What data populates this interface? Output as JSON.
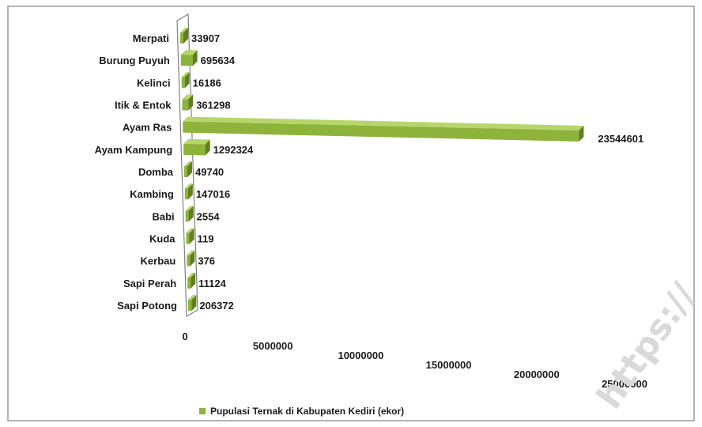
{
  "chart_data": {
    "type": "bar",
    "orientation": "horizontal",
    "three_d": true,
    "categories": [
      "Merpati",
      "Burung Puyuh",
      "Kelinci",
      "Itik & Entok",
      "Ayam Ras",
      "Ayam Kampung",
      "Domba",
      "Kambing",
      "Babi",
      "Kuda",
      "Kerbau",
      "Sapi Perah",
      "Sapi Potong"
    ],
    "values": [
      33907,
      695634,
      16186,
      361298,
      23544601,
      1292324,
      49740,
      147016,
      2554,
      119,
      376,
      11124,
      206372
    ],
    "value_labels": [
      "33907",
      "695634",
      "16186",
      "361298",
      "23544601",
      "1292324",
      "49740",
      "147016",
      "2554",
      "119",
      "376",
      "11124",
      "206372"
    ],
    "x_ticks": [
      "0",
      "5000000",
      "10000000",
      "15000000",
      "20000000",
      "25000000"
    ],
    "xlim": [
      0,
      25000000
    ],
    "series": [
      {
        "name": "Pupulasi Ternak di Kabupaten Kediri (ekor)"
      }
    ],
    "legend_position": "bottom",
    "grid": false,
    "colors": {
      "bar": "#8db33a",
      "bar_dark": "#5f7f1f",
      "bar_light": "#b5d66a",
      "frame": "#808080"
    }
  },
  "watermark": "https://"
}
